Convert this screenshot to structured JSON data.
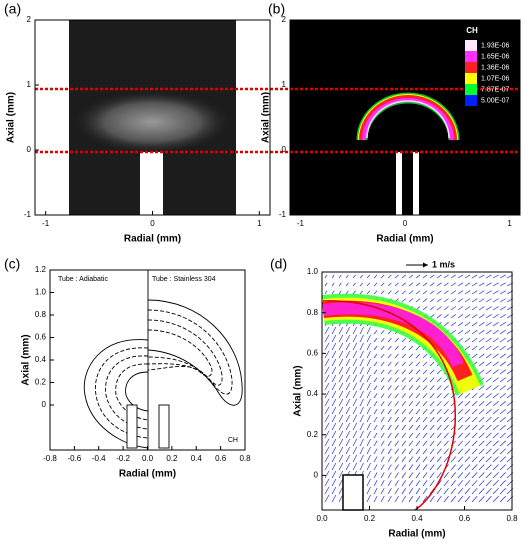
{
  "chart_data": [
    {
      "type": "image",
      "panel_label": "(a)",
      "xlabel": "Radial (mm)",
      "ylabel": "Axial (mm)",
      "xlim": [
        -1.1,
        1.1
      ],
      "ylim": [
        -1,
        2
      ],
      "xticks": [
        -1,
        0,
        1
      ],
      "yticks": [
        -1,
        0,
        1,
        2
      ]
    },
    {
      "type": "image",
      "panel_label": "(b)",
      "xlabel": "Radial (mm)",
      "ylabel": "Axial (mm)",
      "xlim": [
        -1.1,
        1.1
      ],
      "ylim": [
        -1,
        2
      ],
      "xticks": [
        -1,
        0,
        1
      ],
      "yticks": [
        -1,
        0,
        1,
        2
      ],
      "colorbar": {
        "title": "CH",
        "ticks": [
          {
            "value": 1.93e-06,
            "label": "1.93E-06"
          },
          {
            "value": 1.65e-06,
            "label": "1.65E-06"
          },
          {
            "value": 1.36e-06,
            "label": "1.36E-06"
          },
          {
            "value": 1.07e-06,
            "label": "1.07E-06"
          },
          {
            "value": 7.87e-07,
            "label": "7.87E-07"
          },
          {
            "value": 5e-07,
            "label": "5.00E-07"
          }
        ],
        "colors": [
          "#ffe8ff",
          "#ff30ff",
          "#ff2020",
          "#ffff00",
          "#00ff30",
          "#0020ff"
        ]
      }
    },
    {
      "type": "contour",
      "panel_label": "(c)",
      "xlabel": "Radial (mm)",
      "ylabel": "Axial (mm)",
      "xlim": [
        -0.8,
        0.8
      ],
      "ylim": [
        -0.4,
        1.2
      ],
      "xticks": [
        {
          "value": -0.8,
          "label": "-0.8"
        },
        {
          "value": -0.6,
          "label": "-0.6"
        },
        {
          "value": -0.4,
          "label": "-0.4"
        },
        {
          "value": -0.2,
          "label": "-0.2"
        },
        {
          "value": 0,
          "label": "0.0"
        },
        {
          "value": 0.2,
          "label": "0.2"
        },
        {
          "value": 0.4,
          "label": "0.4"
        },
        {
          "value": 0.6,
          "label": "0.6"
        },
        {
          "value": 0.8,
          "label": "0.8"
        }
      ],
      "yticks": [
        0,
        {
          "value": 0.2,
          "label": "0.2"
        },
        {
          "value": 0.4,
          "label": "0.4"
        },
        {
          "value": 0.6,
          "label": "0.6"
        },
        {
          "value": 0.8,
          "label": "0.8"
        },
        {
          "value": 1,
          "label": "1.0"
        },
        {
          "value": 1.2,
          "label": "1.2"
        }
      ],
      "annotations": [
        "Tube : Adiabatic",
        "Tube : Stainless 304",
        "CH"
      ]
    },
    {
      "type": "vector",
      "panel_label": "(d)",
      "xlabel": "Radial (mm)",
      "ylabel": "Axial (mm)",
      "xlim": [
        0,
        0.8
      ],
      "ylim": [
        -0.17,
        1.0
      ],
      "xticks": [
        {
          "value": 0,
          "label": "0.0"
        },
        {
          "value": 0.2,
          "label": "0.2"
        },
        {
          "value": 0.4,
          "label": "0.4"
        },
        {
          "value": 0.6,
          "label": "0.6"
        },
        {
          "value": 0.8,
          "label": "0.8"
        }
      ],
      "yticks": [
        0,
        {
          "value": 0.2,
          "label": "0.2"
        },
        {
          "value": 0.4,
          "label": "0.4"
        },
        {
          "value": 0.6,
          "label": "0.6"
        },
        {
          "value": 0.8,
          "label": "0.8"
        },
        {
          "value": 1,
          "label": "1.0"
        }
      ],
      "annotations": [
        "1 m/s"
      ]
    }
  ]
}
